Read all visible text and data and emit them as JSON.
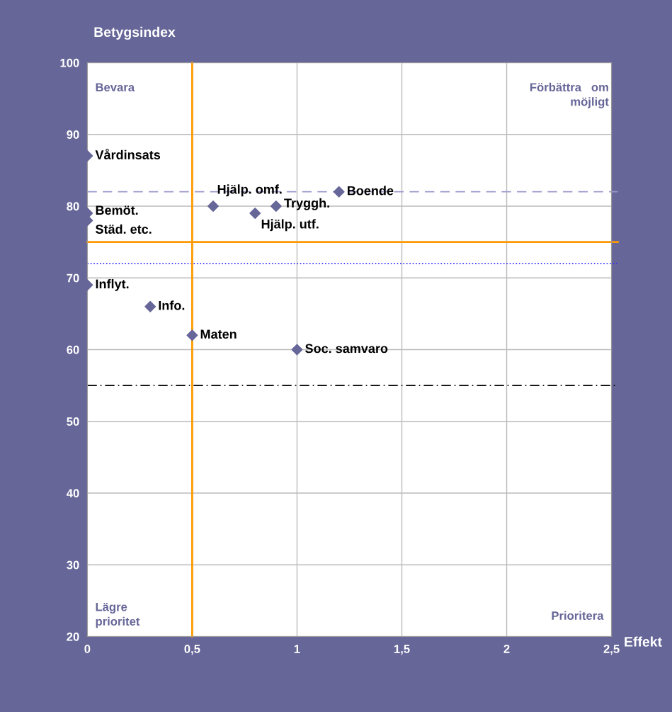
{
  "chart_data": {
    "type": "scatter",
    "xlabel": "Effekt",
    "ylabel": "Betygsindex",
    "x": [
      0,
      0,
      0,
      0,
      0.3,
      0.5,
      1,
      0.6,
      0.8,
      0.9,
      1.2
    ],
    "series": [
      {
        "color": "#666699",
        "values": [
          87,
          79,
          78,
          69,
          66,
          62,
          60,
          80,
          79,
          80,
          82
        ]
      }
    ],
    "marker": "diamond",
    "xlim": [
      0,
      2.5
    ],
    "xticks": [
      {
        "value": 0,
        "label": "0"
      },
      {
        "value": 0.5,
        "label": "0,5"
      },
      {
        "value": 1,
        "label": "1"
      },
      {
        "value": 1.5,
        "label": "1,5"
      },
      {
        "value": 2,
        "label": "2"
      },
      {
        "value": 2.5,
        "label": "2,5"
      }
    ],
    "ylim": [
      20,
      100
    ],
    "yticks": [
      20,
      30,
      40,
      50,
      60,
      70,
      80,
      90,
      100
    ],
    "grid": true,
    "ref_lines": [
      {
        "axis": "y",
        "value": 82,
        "color": "#9999cc",
        "line_style": "dashed"
      },
      {
        "axis": "y",
        "value": 75,
        "color": "#ff9900",
        "line_style": "solid"
      },
      {
        "axis": "y",
        "value": 72,
        "color": "#3333ff",
        "line_style": "dotted"
      },
      {
        "axis": "y",
        "value": 55,
        "color": "#000000",
        "line_style": "dashdot"
      },
      {
        "axis": "x",
        "value": 0.5,
        "color": "#ff9900",
        "line_style": "solid"
      }
    ],
    "annotations": [
      {
        "text": "Vårdinsats",
        "x": 0,
        "y": 87
      },
      {
        "text": "Bemöt.",
        "x": 0,
        "y": 79
      },
      {
        "text": "Städ. etc.",
        "x": 0,
        "y": 78
      },
      {
        "text": "Inflyt.",
        "x": 0,
        "y": 69
      },
      {
        "text": "Info.",
        "x": 0.3,
        "y": 66
      },
      {
        "text": "Maten",
        "x": 0.5,
        "y": 62
      },
      {
        "text": "Soc. samvaro",
        "x": 1,
        "y": 60
      },
      {
        "text": "Hjälp. omf.",
        "x": 0.6,
        "y": 80
      },
      {
        "text": "Hjälp. utf.",
        "x": 0.8,
        "y": 79
      },
      {
        "text": "Tryggh.",
        "x": 0.9,
        "y": 80
      },
      {
        "text": "Boende",
        "x": 1.2,
        "y": 82
      },
      "Bevara",
      "Förbättra   om\nmöjligt",
      "Lägre\nprioritet",
      "Prioritera"
    ]
  }
}
